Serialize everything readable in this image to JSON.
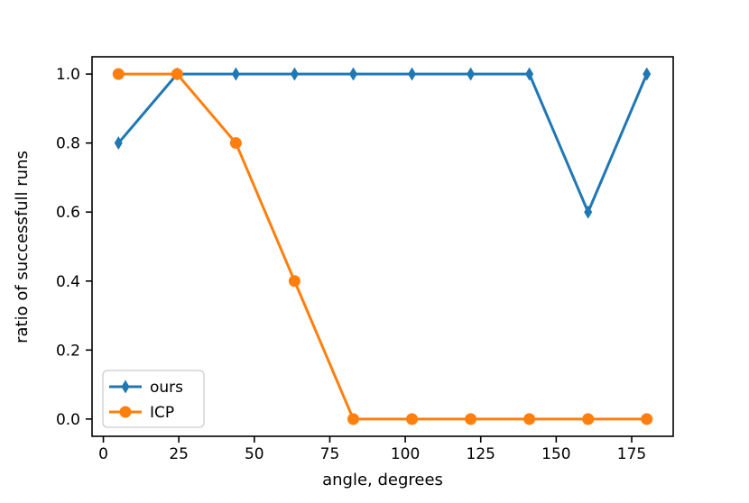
{
  "chart_data": {
    "type": "line",
    "x": [
      5.0,
      24.44,
      43.89,
      63.33,
      82.78,
      102.22,
      121.67,
      141.11,
      160.56,
      180.0
    ],
    "series": [
      {
        "name": "ours",
        "color": "#1f77b4",
        "marker": "thin-diamond",
        "values": [
          0.8,
          1.0,
          1.0,
          1.0,
          1.0,
          1.0,
          1.0,
          1.0,
          0.6,
          1.0
        ]
      },
      {
        "name": "ICP",
        "color": "#ff7f0e",
        "marker": "circle",
        "values": [
          1.0,
          1.0,
          0.8,
          0.4,
          0.0,
          0.0,
          0.0,
          0.0,
          0.0,
          0.0
        ]
      }
    ],
    "title": "",
    "xlabel": "angle, degrees",
    "ylabel": "ratio of successfull runs",
    "xticks": [
      0,
      25,
      50,
      75,
      100,
      125,
      150,
      175
    ],
    "xtick_labels": [
      "0",
      "25",
      "50",
      "75",
      "100",
      "125",
      "150",
      "175"
    ],
    "yticks": [
      0.0,
      0.2,
      0.4,
      0.6,
      0.8,
      1.0
    ],
    "ytick_labels": [
      "0.0",
      "0.2",
      "0.4",
      "0.6",
      "0.8",
      "1.0"
    ],
    "xlim": [
      -3.75,
      188.75
    ],
    "ylim": [
      -0.05,
      1.05
    ],
    "grid": false,
    "legend": {
      "location": "lower left",
      "entries": [
        "ours",
        "ICP"
      ],
      "border_color": "#cccccc",
      "background": "#ffffff"
    },
    "colors": {
      "axes": "#000000",
      "text": "#000000"
    }
  }
}
